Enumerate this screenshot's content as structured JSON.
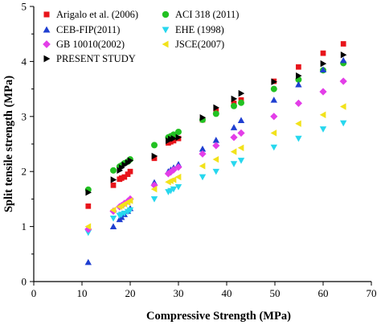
{
  "chart_data": {
    "type": "scatter",
    "title": "",
    "xlabel": "Compressive Strength (MPa)",
    "ylabel": "Split tensile strength (MPa)",
    "xlim": [
      0,
      70
    ],
    "ylim": [
      0,
      5
    ],
    "xticks": [
      0,
      10,
      20,
      30,
      40,
      50,
      60,
      70
    ],
    "yticks": [
      0,
      1,
      2,
      3,
      4,
      5
    ],
    "grid": false,
    "legend_position": "top-left",
    "series": [
      {
        "name": "Arigalo et al. (2006)",
        "marker": "square",
        "color": "#e8141b",
        "x": [
          11.3,
          16.5,
          17.8,
          18.2,
          18.8,
          19.5,
          20.0,
          25.0,
          27.9,
          28.4,
          29.0,
          30.0,
          35.0,
          37.8,
          41.5,
          43.0,
          49.8,
          54.9,
          60.0,
          64.2
        ],
        "y": [
          1.37,
          1.75,
          1.86,
          1.88,
          1.9,
          1.95,
          2.0,
          2.24,
          2.52,
          2.54,
          2.56,
          2.6,
          2.94,
          3.1,
          3.24,
          3.3,
          3.64,
          3.9,
          4.15,
          4.32
        ]
      },
      {
        "name": "ACI 318 (2011)",
        "marker": "circle",
        "color": "#22c122",
        "x": [
          11.3,
          16.5,
          17.8,
          18.2,
          18.8,
          19.5,
          20.0,
          25.0,
          27.9,
          28.4,
          29.0,
          30.0,
          35.0,
          37.8,
          41.5,
          43.0,
          49.8,
          54.9,
          60.0,
          64.2
        ],
        "y": [
          1.67,
          2.02,
          2.09,
          2.11,
          2.15,
          2.18,
          2.22,
          2.48,
          2.62,
          2.64,
          2.67,
          2.72,
          2.94,
          3.05,
          3.19,
          3.25,
          3.5,
          3.67,
          3.84,
          3.97
        ]
      },
      {
        "name": "CEB-FIP(2011)",
        "marker": "triangle-up",
        "color": "#1f3fd1",
        "x": [
          11.3,
          16.5,
          17.8,
          18.2,
          18.8,
          19.5,
          20.0,
          25.0,
          27.9,
          28.4,
          29.0,
          30.0,
          35.0,
          37.8,
          41.5,
          43.0,
          49.8,
          54.9,
          60.0,
          64.2
        ],
        "y": [
          0.35,
          1.0,
          1.13,
          1.17,
          1.22,
          1.28,
          1.33,
          1.8,
          2.0,
          2.03,
          2.07,
          2.13,
          2.41,
          2.57,
          2.8,
          2.93,
          3.3,
          3.58,
          3.85,
          4.02
        ]
      },
      {
        "name": "EHE (1998)",
        "marker": "triangle-down",
        "color": "#27d7ee",
        "x": [
          11.3,
          16.5,
          17.8,
          18.2,
          18.8,
          19.5,
          20.0,
          25.0,
          27.9,
          28.4,
          29.0,
          30.0,
          35.0,
          37.8,
          41.5,
          43.0,
          49.8,
          54.9,
          60.0,
          64.2
        ],
        "y": [
          0.89,
          1.15,
          1.2,
          1.22,
          1.24,
          1.27,
          1.3,
          1.5,
          1.63,
          1.65,
          1.68,
          1.72,
          1.9,
          2.0,
          2.14,
          2.2,
          2.44,
          2.6,
          2.77,
          2.88
        ]
      },
      {
        "name": "GB 10010(2002)",
        "marker": "diamond",
        "color": "#e33ee8",
        "x": [
          11.3,
          16.5,
          17.8,
          18.2,
          18.8,
          19.5,
          20.0,
          25.0,
          27.9,
          28.4,
          29.0,
          30.0,
          35.0,
          37.8,
          41.5,
          43.0,
          49.8,
          54.9,
          60.0,
          64.2
        ],
        "y": [
          0.95,
          1.28,
          1.36,
          1.38,
          1.42,
          1.46,
          1.5,
          1.75,
          1.96,
          1.99,
          2.03,
          2.08,
          2.32,
          2.47,
          2.62,
          2.7,
          3.0,
          3.24,
          3.45,
          3.64
        ]
      },
      {
        "name": "JSCE(2007)",
        "marker": "triangle-left",
        "color": "#f2e21b",
        "x": [
          11.3,
          16.5,
          17.8,
          18.2,
          18.8,
          19.5,
          20.0,
          25.0,
          27.9,
          28.4,
          29.0,
          30.0,
          35.0,
          37.8,
          41.5,
          43.0,
          49.8,
          54.9,
          60.0,
          64.2
        ],
        "y": [
          1.0,
          1.3,
          1.36,
          1.38,
          1.41,
          1.44,
          1.47,
          1.68,
          1.81,
          1.83,
          1.85,
          1.9,
          2.1,
          2.22,
          2.36,
          2.43,
          2.7,
          2.87,
          3.03,
          3.18
        ]
      },
      {
        "name": "PRESENT STUDY",
        "marker": "triangle-right",
        "color": "#000000",
        "x": [
          11.3,
          16.5,
          17.8,
          18.2,
          18.8,
          19.5,
          20.0,
          25.0,
          27.9,
          28.4,
          29.0,
          30.0,
          35.0,
          37.8,
          41.5,
          43.0,
          49.8,
          54.9,
          60.0,
          64.2
        ],
        "y": [
          1.62,
          1.85,
          2.02,
          2.07,
          2.12,
          2.16,
          2.2,
          2.28,
          2.56,
          2.59,
          2.6,
          2.62,
          2.98,
          3.16,
          3.32,
          3.42,
          3.63,
          3.74,
          3.96,
          4.12
        ]
      }
    ]
  }
}
